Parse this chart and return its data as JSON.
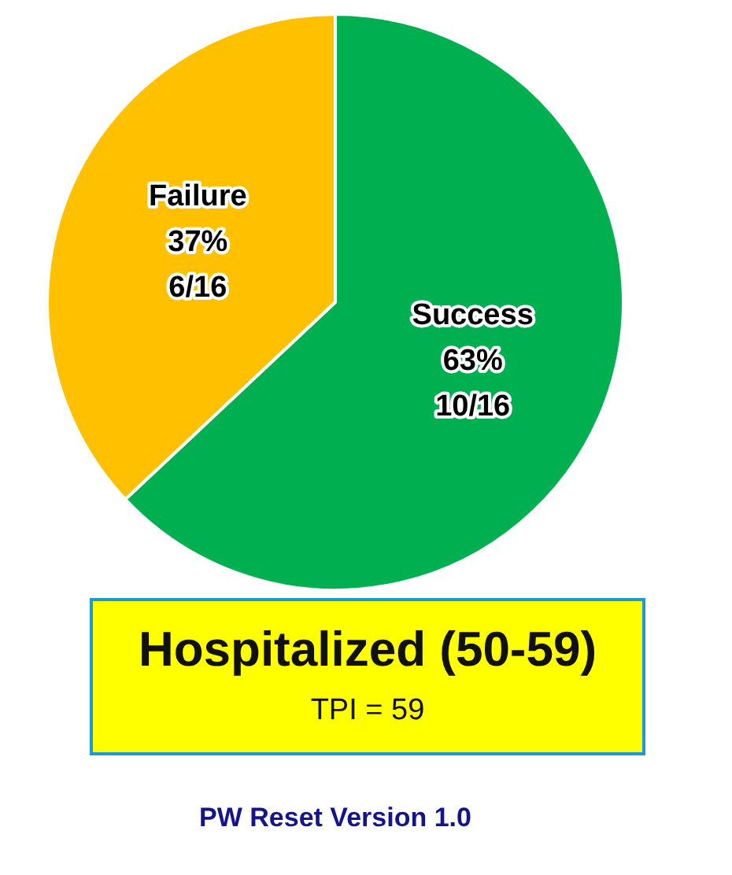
{
  "chart_data": {
    "type": "pie",
    "title": "Hospitalized (50-59)",
    "subtitle": "TPI = 59",
    "categories": [
      "Success",
      "Failure"
    ],
    "values": [
      63,
      37
    ],
    "colors": [
      "#00b050",
      "#ffc000"
    ],
    "value_labels": [
      "63%\n10/16",
      "37%\n6/16"
    ],
    "annotations": [
      "PW Reset Version 1.0"
    ]
  }
}
